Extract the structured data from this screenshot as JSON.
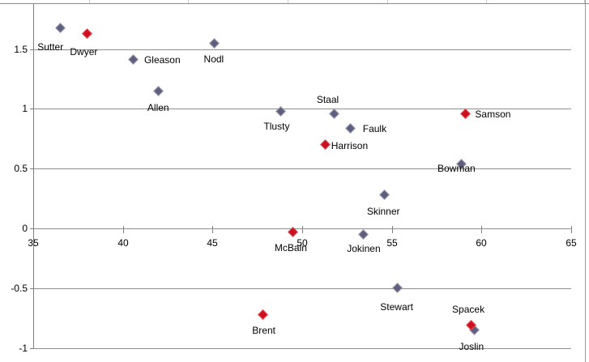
{
  "chart_data": {
    "type": "scatter",
    "title": "",
    "xlabel": "",
    "ylabel": "",
    "xlim": [
      35,
      65
    ],
    "ylim": [
      -1,
      1.88
    ],
    "x_ticks": [
      35,
      40,
      45,
      50,
      55,
      60,
      65
    ],
    "y_ticks": [
      1.5,
      1,
      0.5,
      0,
      -0.5,
      -1
    ],
    "grid": "horizontal-only",
    "legend": "none",
    "marker": "diamond",
    "colors": {
      "series1_fill": "#5E5E7E",
      "series1_edge": "#9B9BB0",
      "series2_fill": "#CB111E",
      "series2_edge": "#DE4A50",
      "gridline": "#8F8F8F",
      "axis": "#808080",
      "label_text": "#000000"
    },
    "series": [
      {
        "name": "series-1-slate",
        "fill": "#5E5E7E",
        "edge": "#9B9BB0",
        "points": [
          {
            "label": "Sutter",
            "x": 36.5,
            "y": 1.68,
            "label_dx": -28,
            "label_dy": 18
          },
          {
            "label": "Gleason",
            "x": 40.6,
            "y": 1.41,
            "label_dx": 13,
            "label_dy": -6
          },
          {
            "label": "Nodl",
            "x": 45.1,
            "y": 1.55,
            "label_dx": -13,
            "label_dy": 14
          },
          {
            "label": "Allen",
            "x": 42.0,
            "y": 1.15,
            "label_dx": -14,
            "label_dy": 15
          },
          {
            "label": "Tlusty",
            "x": 48.8,
            "y": 0.98,
            "label_dx": -21,
            "label_dy": 13
          },
          {
            "label": "Staal",
            "x": 51.8,
            "y": 0.96,
            "label_dx": -22,
            "label_dy": -23
          },
          {
            "label": "Faulk",
            "x": 52.7,
            "y": 0.84,
            "label_dx": 15,
            "label_dy": -5
          },
          {
            "label": "Bowman",
            "x": 58.9,
            "y": 0.54,
            "label_dx": -30,
            "label_dy": 0
          },
          {
            "label": "Skinner",
            "x": 54.6,
            "y": 0.28,
            "label_dx": -22,
            "label_dy": 14
          },
          {
            "label": "Jokinen",
            "x": 53.4,
            "y": -0.05,
            "label_dx": -20,
            "label_dy": 12
          },
          {
            "label": "Stewart",
            "x": 55.3,
            "y": -0.5,
            "label_dx": -21,
            "label_dy": 17
          },
          {
            "label": "Joslin",
            "x": 59.6,
            "y": -0.85,
            "label_dx": -19,
            "label_dy": 15
          }
        ]
      },
      {
        "name": "series-2-red",
        "fill": "#CB111E",
        "edge": "#DE4A50",
        "points": [
          {
            "label": "Dwyer",
            "x": 38.0,
            "y": 1.63,
            "label_dx": -21,
            "label_dy": 17
          },
          {
            "label": "Harrison",
            "x": 51.3,
            "y": 0.7,
            "label_dx": 7,
            "label_dy": -5
          },
          {
            "label": "Samson",
            "x": 59.1,
            "y": 0.96,
            "label_dx": 12,
            "label_dy": -5
          },
          {
            "label": "McBain",
            "x": 49.5,
            "y": -0.03,
            "label_dx": -23,
            "label_dy": 14
          },
          {
            "label": "Brent",
            "x": 47.8,
            "y": -0.72,
            "label_dx": -13,
            "label_dy": 14
          },
          {
            "label": "Spacek",
            "x": 59.4,
            "y": -0.81,
            "label_dx": -23,
            "label_dy": -26
          }
        ]
      }
    ]
  }
}
